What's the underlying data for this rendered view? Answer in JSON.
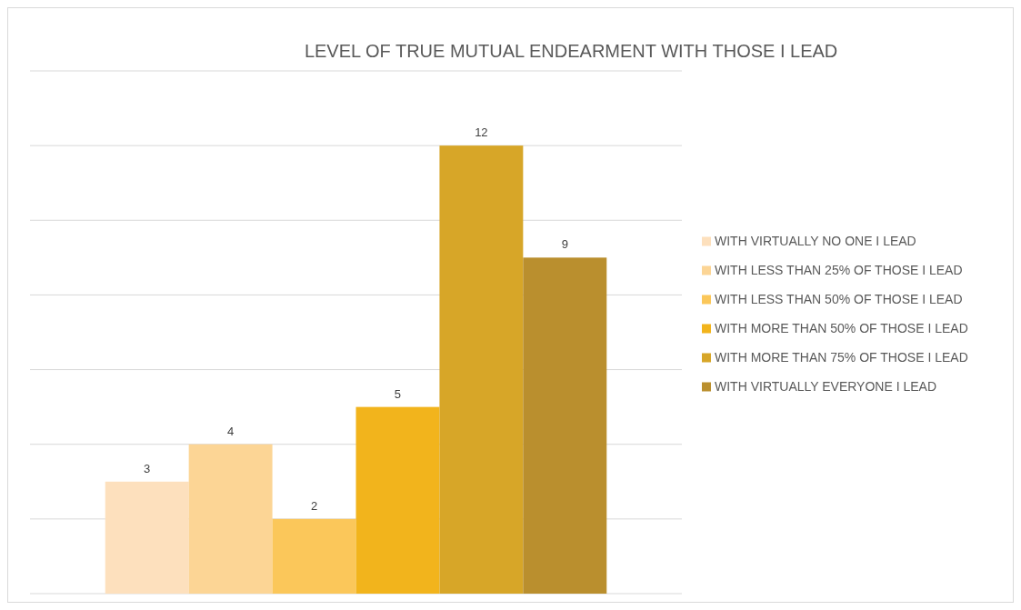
{
  "chart_data": {
    "type": "bar",
    "title": "LEVEL OF TRUE MUTUAL ENDEARMENT WITH THOSE I LEAD",
    "categories": [
      null
    ],
    "series": [
      {
        "name": "WITH VIRTUALLY NO ONE I LEAD",
        "color": "#fde0bd",
        "values": [
          3
        ]
      },
      {
        "name": "WITH LESS THAN 25% OF THOSE I LEAD",
        "color": "#fcd595",
        "values": [
          4
        ]
      },
      {
        "name": "WITH LESS THAN 50% OF THOSE I LEAD",
        "color": "#fbc75a",
        "values": [
          2
        ]
      },
      {
        "name": "WITH MORE THAN 50% OF THOSE I LEAD",
        "color": "#f2b41c",
        "values": [
          5
        ]
      },
      {
        "name": "WITH MORE THAN 75% OF THOSE I LEAD",
        "color": "#d7a628",
        "values": [
          12
        ]
      },
      {
        "name": "WITH VIRTUALLY EVERYONE I LEAD",
        "color": "#ba8f2e",
        "values": [
          9
        ]
      }
    ],
    "ylim": [
      0,
      14
    ],
    "yticks": [
      {
        "value": 0,
        "label": null
      },
      {
        "value": 2,
        "label": null
      },
      {
        "value": 4,
        "label": null
      },
      {
        "value": 6,
        "label": null
      },
      {
        "value": 8,
        "label": null
      },
      {
        "value": 10,
        "label": null
      },
      {
        "value": 12,
        "label": null
      },
      {
        "value": 14,
        "label": null
      }
    ],
    "grid": "y",
    "legend": "right",
    "data_labels": true
  }
}
